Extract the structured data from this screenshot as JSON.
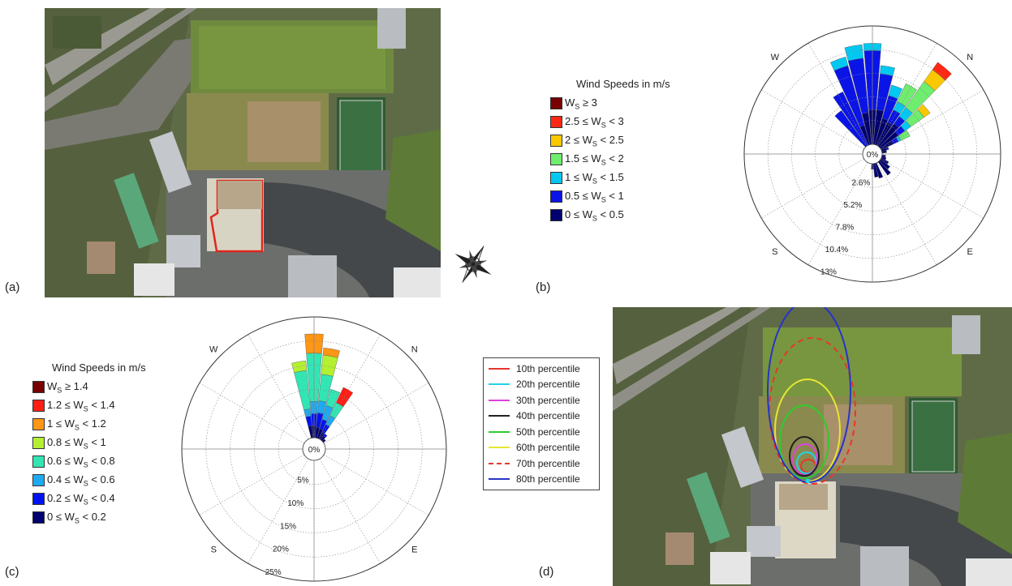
{
  "panels": {
    "a": {
      "label": "(a)"
    },
    "b": {
      "label": "(b)"
    },
    "c": {
      "label": "(c)"
    },
    "d": {
      "label": "(d)"
    }
  },
  "colors": {
    "b_bins": [
      "#000070",
      "#0a14e6",
      "#00c8f0",
      "#6eed6e",
      "#fac800",
      "#ff2814",
      "#780000"
    ],
    "c_bins": [
      "#000070",
      "#0012f0",
      "#1eaaf0",
      "#32e6b4",
      "#b4f032",
      "#ff9614",
      "#ff1e14",
      "#780000"
    ]
  },
  "map_icons": [
    "compass-rose-icon"
  ],
  "chart_data": [
    {
      "type": "windrose",
      "panel": "b",
      "legend_title": "Wind Speeds in m/s",
      "legend_entries": [
        "W_S ≥ 3",
        "2.5 ≤ W_S < 3",
        "2 ≤ W_S < 2.5",
        "1.5 ≤ W_S < 2",
        "1 ≤ W_S < 1.5",
        "0.5 ≤ W_S < 1",
        "0 ≤ W_S < 0.5"
      ],
      "legend_main": [
        "W",
        "2.5 ≤ W",
        "2 ≤ W",
        "1.5 ≤ W",
        "1 ≤ W",
        "0.5 ≤ W",
        "0 ≤ W"
      ],
      "legend_sub": [
        "S",
        "S",
        "S",
        "S",
        "S",
        "S",
        "S"
      ],
      "legend_tail": [
        " ≥ 3",
        " < 3",
        " < 2.5",
        " < 2",
        " < 1.5",
        " < 1",
        " < 0.5"
      ],
      "direction_labels": [
        "W",
        "N",
        "S",
        "E"
      ],
      "direction_angles": [
        -45,
        45,
        -135,
        135
      ],
      "radial_labels": [
        "0%",
        "2.6%",
        "5.2%",
        "7.8%",
        "10.4%",
        "13%"
      ],
      "radial_values": [
        0,
        2.6,
        5.2,
        7.8,
        10.4,
        13
      ],
      "rmax": 13,
      "sectors": [
        {
          "angle": -40,
          "values": [
            0,
            4.8,
            0,
            0,
            0,
            0,
            0
          ]
        },
        {
          "angle": -30,
          "values": [
            0,
            6.5,
            0,
            0,
            0,
            0,
            0
          ]
        },
        {
          "angle": -20,
          "values": [
            2.2,
            6.8,
            1.0,
            0,
            0,
            0,
            0
          ]
        },
        {
          "angle": -10,
          "values": [
            3.5,
            6.0,
            1.5,
            0,
            0,
            0,
            0
          ]
        },
        {
          "angle": 0,
          "values": [
            3.8,
            6.5,
            0.8,
            0,
            0,
            0,
            0
          ]
        },
        {
          "angle": 10,
          "values": [
            3.8,
            4.0,
            0.9,
            0,
            0,
            0,
            0
          ]
        },
        {
          "angle": 20,
          "values": [
            3.0,
            2.6,
            1.2,
            0,
            0,
            0,
            0
          ]
        },
        {
          "angle": 30,
          "values": [
            2.8,
            1.5,
            1.0,
            2.2,
            0,
            0,
            0
          ]
        },
        {
          "angle": 40,
          "values": [
            3.0,
            1.0,
            1.2,
            3.5,
            1.6,
            1.0,
            0
          ]
        },
        {
          "angle": 50,
          "values": [
            2.4,
            0.9,
            0.8,
            1.8,
            0.8,
            0,
            0
          ]
        },
        {
          "angle": 60,
          "values": [
            1.5,
            0.6,
            0.3,
            1.1,
            0,
            0,
            0
          ]
        },
        {
          "angle": 70,
          "values": [
            0.6,
            0.2,
            0,
            0,
            0,
            0,
            0
          ]
        },
        {
          "angle": 80,
          "values": [
            0.5,
            0,
            0,
            0,
            0,
            0,
            0
          ]
        },
        {
          "angle": 100,
          "values": [
            0.4,
            0,
            0,
            0,
            0,
            0,
            0
          ]
        },
        {
          "angle": 110,
          "values": [
            0.5,
            0,
            0,
            0,
            0,
            0,
            0
          ]
        },
        {
          "angle": 120,
          "values": [
            0.9,
            0,
            0,
            0,
            0,
            0,
            0
          ]
        },
        {
          "angle": 130,
          "values": [
            1.3,
            0,
            0,
            0,
            0,
            0,
            0
          ]
        },
        {
          "angle": 140,
          "values": [
            1.8,
            0,
            0,
            0,
            0,
            0,
            0
          ]
        },
        {
          "angle": 160,
          "values": [
            1.7,
            0,
            0,
            0,
            0,
            0,
            0
          ]
        },
        {
          "angle": 170,
          "values": [
            1.5,
            0,
            0,
            0,
            0,
            0,
            0
          ]
        },
        {
          "angle": 180,
          "values": [
            0.6,
            0,
            0,
            0,
            0,
            0,
            0
          ]
        }
      ]
    },
    {
      "type": "windrose",
      "panel": "c",
      "legend_title": "Wind Speeds in m/s",
      "legend_entries": [
        "W_S ≥ 1.4",
        "1.2 ≤ W_S < 1.4",
        "1 ≤ W_S < 1.2",
        "0.8 ≤ W_S < 1",
        "0.6 ≤ W_S < 0.8",
        "0.4 ≤ W_S < 0.6",
        "0.2 ≤ W_S < 0.4",
        "0 ≤ W_S < 0.2"
      ],
      "legend_main": [
        "W",
        "1.2 ≤ W",
        "1 ≤ W",
        "0.8 ≤ W",
        "0.6 ≤ W",
        "0.4 ≤ W",
        "0.2 ≤ W",
        "0 ≤ W"
      ],
      "legend_sub": [
        "S",
        "S",
        "S",
        "S",
        "S",
        "S",
        "S",
        "S"
      ],
      "legend_tail": [
        " ≥ 1.4",
        " < 1.4",
        " < 1.2",
        " < 1",
        " < 0.8",
        " < 0.6",
        " < 0.4",
        " < 0.2"
      ],
      "direction_labels": [
        "W",
        "N",
        "S",
        "E"
      ],
      "direction_angles": [
        -45,
        45,
        -135,
        135
      ],
      "radial_labels": [
        "0%",
        "5%",
        "10%",
        "15%",
        "20%",
        "25%"
      ],
      "radial_values": [
        0,
        5,
        10,
        15,
        20,
        25
      ],
      "rmax": 25,
      "sectors": [
        {
          "angle": -10,
          "values": [
            2.5,
            2.0,
            1.5,
            8.0,
            2.0,
            0,
            0,
            0
          ]
        },
        {
          "angle": 0,
          "values": [
            2.5,
            2.5,
            2.5,
            10.0,
            0,
            4.0,
            0,
            0
          ]
        },
        {
          "angle": 10,
          "values": [
            2.2,
            3.0,
            2.5,
            5.5,
            4.0,
            1.5,
            0,
            0
          ]
        },
        {
          "angle": 20,
          "values": [
            2.0,
            2.0,
            3.0,
            3.5,
            0,
            0,
            0,
            0
          ]
        },
        {
          "angle": 30,
          "values": [
            1.5,
            1.8,
            2.0,
            3.0,
            0,
            0,
            3.5,
            0
          ]
        },
        {
          "angle": 40,
          "values": [
            1.0,
            0.5,
            0,
            0,
            0,
            0,
            0,
            0
          ]
        },
        {
          "angle": 50,
          "values": [
            0.6,
            0,
            0,
            0,
            0,
            0,
            0,
            0
          ]
        }
      ]
    },
    {
      "type": "contour_legend",
      "panel": "d",
      "series": [
        {
          "name": "10th percentile",
          "color": "#e8352b",
          "dash": false
        },
        {
          "name": "20th percentile",
          "color": "#23d2e6",
          "dash": false
        },
        {
          "name": "30th percentile",
          "color": "#e040e0",
          "dash": false
        },
        {
          "name": "40th percentile",
          "color": "#222222",
          "dash": false
        },
        {
          "name": "50th percentile",
          "color": "#2ecc2e",
          "dash": false
        },
        {
          "name": "60th percentile",
          "color": "#e6e632",
          "dash": false
        },
        {
          "name": "70th percentile",
          "color": "#e8352b",
          "dash": true
        },
        {
          "name": "80th percentile",
          "color": "#2834c8",
          "dash": false
        }
      ]
    }
  ]
}
